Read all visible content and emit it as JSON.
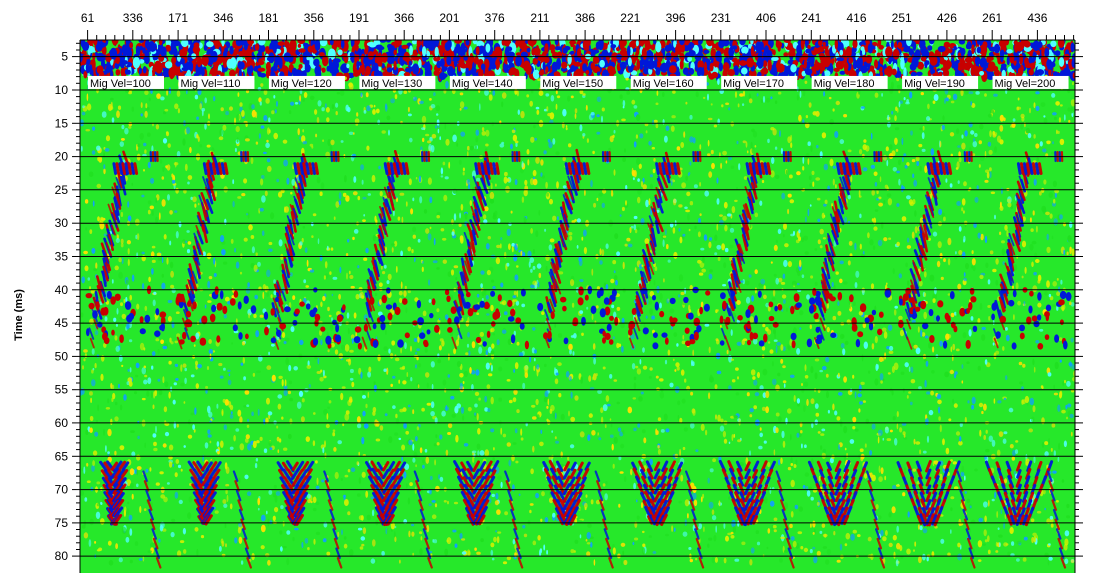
{
  "chart_data": {
    "type": "heatmap",
    "title": "",
    "ylabel": "Time (ms)",
    "xlabel": "",
    "y_range": [
      0,
      80
    ],
    "y_major_ticks": [
      5,
      10,
      15,
      20,
      25,
      30,
      35,
      40,
      45,
      50,
      55,
      60,
      65,
      70,
      75,
      80
    ],
    "x_tick_labels": [
      "61",
      "336",
      "171",
      "346",
      "181",
      "356",
      "191",
      "366",
      "201",
      "376",
      "211",
      "386",
      "221",
      "396",
      "231",
      "406",
      "241",
      "416",
      "251",
      "426",
      "261",
      "436"
    ],
    "panel_labels": [
      "Mig Vel=100",
      "Mig Vel=110",
      "Mig Vel=120",
      "Mig Vel=130",
      "Mig Vel=140",
      "Mig Vel=150",
      "Mig Vel=160",
      "Mig Vel=170",
      "Mig Vel=180",
      "Mig Vel=190",
      "Mig Vel=200"
    ],
    "grid": true,
    "colormap": [
      "#0018d8",
      "#10a0ff",
      "#50ffff",
      "#20e020",
      "#d8f000",
      "#ffe000",
      "#ff4000",
      "#c80000"
    ],
    "background_color": "#26e82a"
  }
}
